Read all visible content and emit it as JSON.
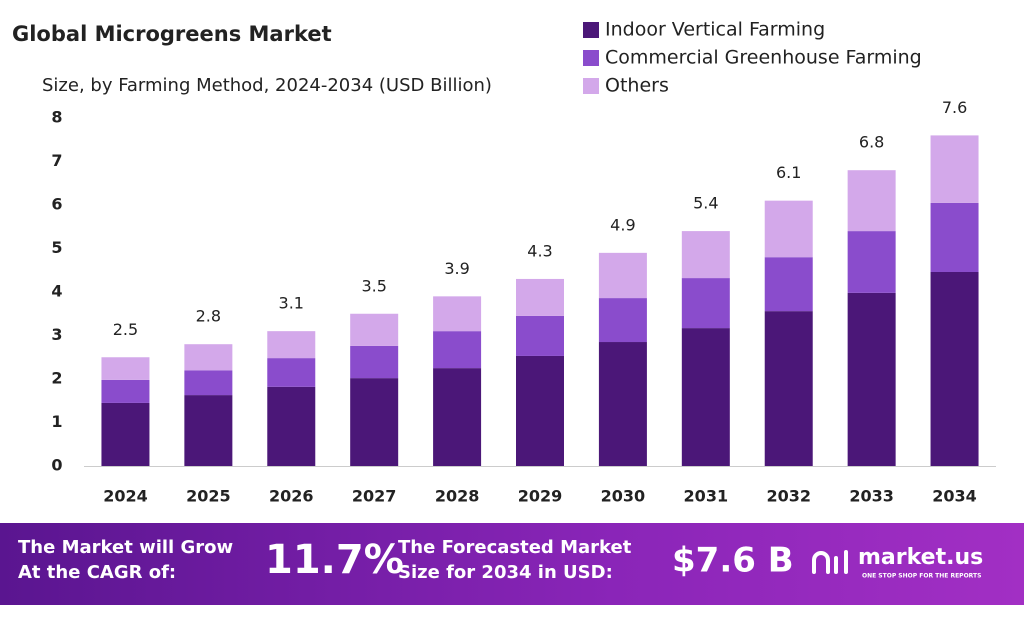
{
  "chart_data": {
    "type": "stacked_bar",
    "title": "Global Microgreens Market",
    "subtitle": "Size, by Farming Method, 2024-2034 (USD Billion)",
    "categories": [
      "2024",
      "2025",
      "2026",
      "2027",
      "2028",
      "2029",
      "2030",
      "2031",
      "2032",
      "2033",
      "2034"
    ],
    "series": [
      {
        "name": "Indoor Vertical Farming",
        "color": "#4b1778",
        "values": [
          1.45,
          1.63,
          1.82,
          2.02,
          2.25,
          2.53,
          2.85,
          3.17,
          3.56,
          3.98,
          4.46
        ]
      },
      {
        "name": "Commercial Greenhouse Farming",
        "color": "#8a4ccc",
        "values": [
          0.53,
          0.57,
          0.66,
          0.74,
          0.85,
          0.92,
          1.01,
          1.15,
          1.24,
          1.42,
          1.59
        ]
      },
      {
        "name": "Others",
        "color": "#d3a8ea",
        "values": [
          0.52,
          0.6,
          0.62,
          0.74,
          0.8,
          0.85,
          1.04,
          1.08,
          1.3,
          1.4,
          1.55
        ]
      }
    ],
    "totals": [
      2.5,
      2.8,
      3.1,
      3.5,
      3.9,
      4.3,
      4.9,
      5.4,
      6.1,
      6.8,
      7.6
    ],
    "ylim": [
      0,
      8
    ],
    "yticks": [
      0,
      1,
      2,
      3,
      4,
      5,
      6,
      7,
      8
    ],
    "grid": false,
    "legend": "top-right"
  },
  "footer": {
    "cagr_text": [
      "The Market will Grow",
      "At the CAGR of:"
    ],
    "cagr": "11.7%",
    "forecast_text": [
      "The Forecasted Market",
      "Size for 2034 in USD:"
    ],
    "forecast": "$7.6 B",
    "brand": "market.us",
    "tagline": "ONE STOP SHOP FOR THE REPORTS"
  }
}
